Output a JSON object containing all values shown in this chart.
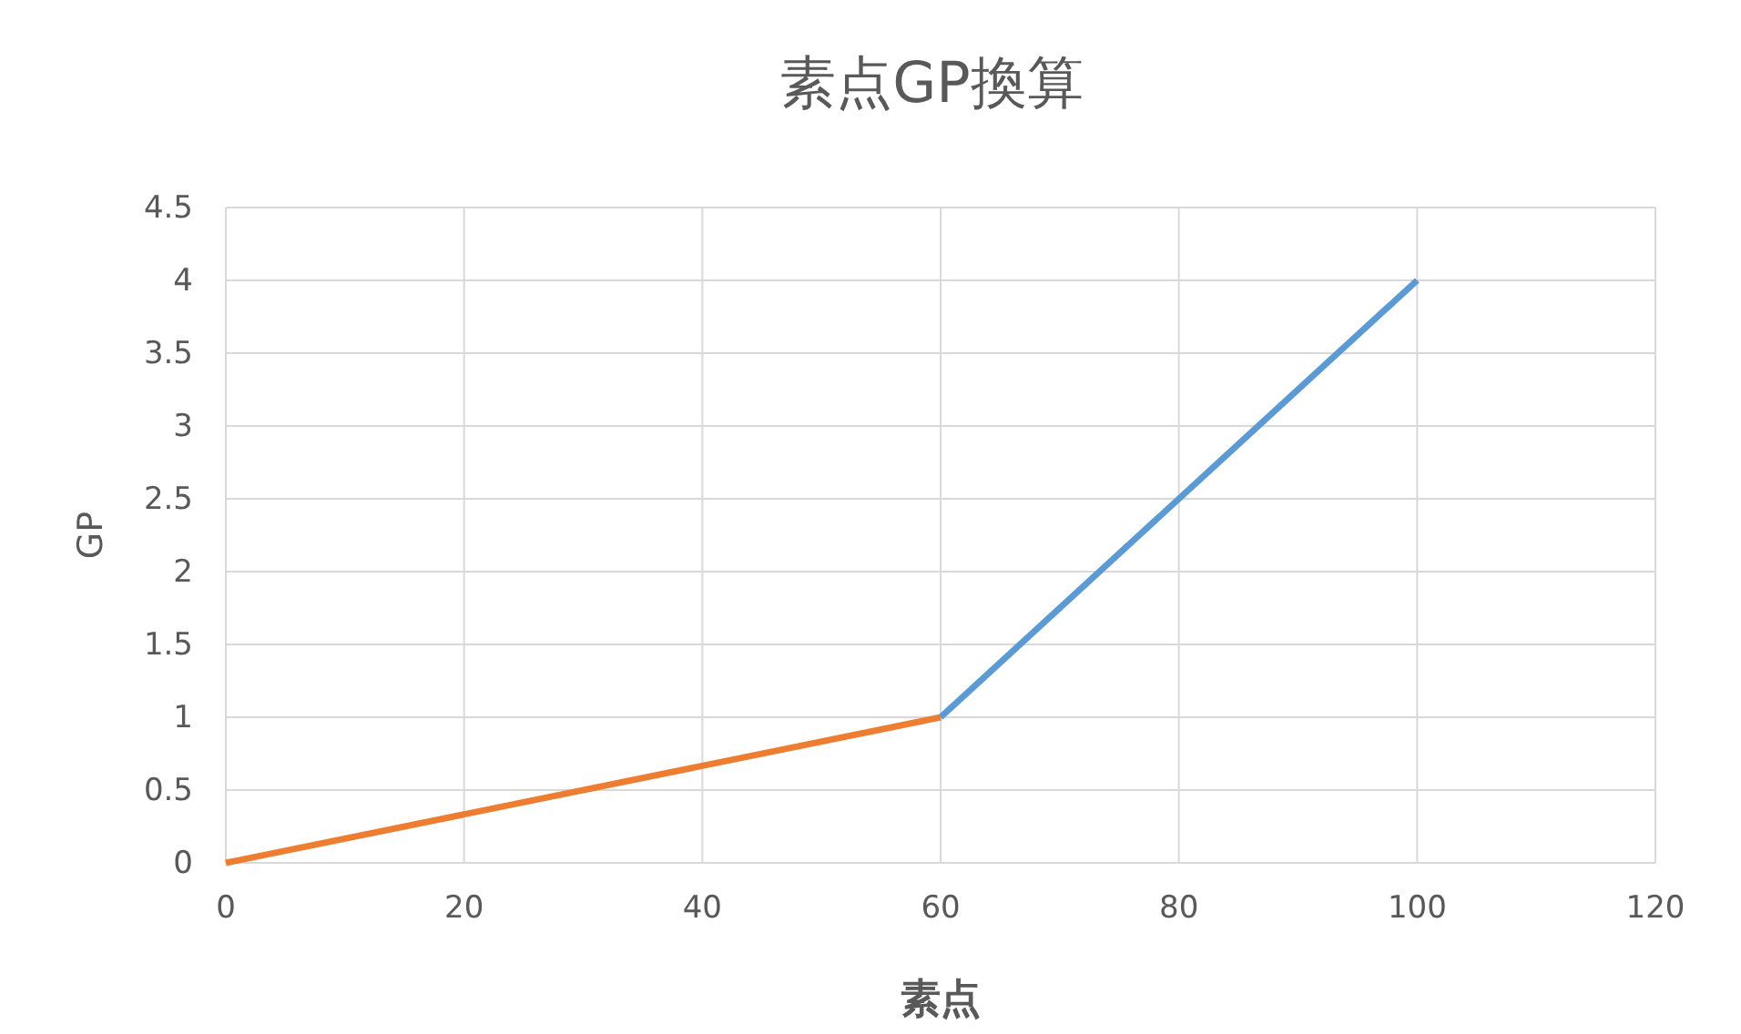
{
  "chart_data": {
    "type": "line",
    "title": "素点GP換算",
    "xlabel": "素点",
    "ylabel": "GP",
    "series": [
      {
        "color": "#5b9bd5",
        "x": [
          60,
          100
        ],
        "values": [
          1,
          4
        ]
      },
      {
        "color": "#ed7d31",
        "x": [
          0,
          60
        ],
        "values": [
          0,
          1
        ]
      }
    ],
    "xlim": [
      0,
      120
    ],
    "xticks": [
      0,
      20,
      40,
      60,
      80,
      100,
      120
    ],
    "ylim": [
      0,
      4.5
    ],
    "yticks": [
      0,
      0.5,
      1,
      1.5,
      2,
      2.5,
      3,
      3.5,
      4,
      4.5
    ],
    "grid": true,
    "marker": "none",
    "line_style": "solid"
  }
}
